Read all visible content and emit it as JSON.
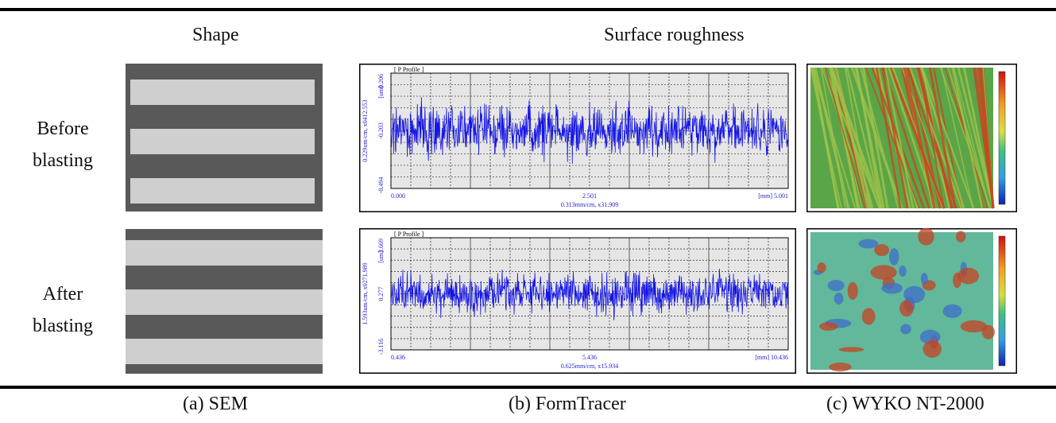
{
  "headers": {
    "shape": "Shape",
    "roughness": "Surface roughness"
  },
  "rows": [
    {
      "label_line1": "Before",
      "label_line2": "blasting"
    },
    {
      "label_line1": "After",
      "label_line2": "blasting"
    }
  ],
  "captions": {
    "sem": "(a) SEM",
    "formtracer": "(b) FormTracer",
    "wyko": "(c) WYKO NT-2000"
  },
  "formtracer": {
    "before": {
      "header": "[ P Profile ]",
      "y_side_label": "0.229um/cm, x0412.553",
      "y_unit": "[um]",
      "y_ticks": [
        "0.206",
        "-0.203",
        "-0.494"
      ],
      "x_ticks": [
        "0.000",
        "2.501",
        "[mm] 5.001"
      ],
      "x_footer": "0.313mm/cm, x31.909"
    },
    "after": {
      "header": "[ P Profile ]",
      "y_side_label": "1.593um/cm, x0271.989",
      "y_unit": "[um]",
      "y_ticks": [
        "3.669",
        "0.277",
        "-3.116"
      ],
      "x_ticks": [
        "0.436",
        "5.436",
        "[mm] 10.436"
      ],
      "x_footer": "0.625mm/cm, x15.934"
    }
  },
  "colors": {
    "trace": "#1414e6",
    "rule": "#000000",
    "sem_dark": "#595959",
    "sem_light": "#cfcfcf"
  }
}
